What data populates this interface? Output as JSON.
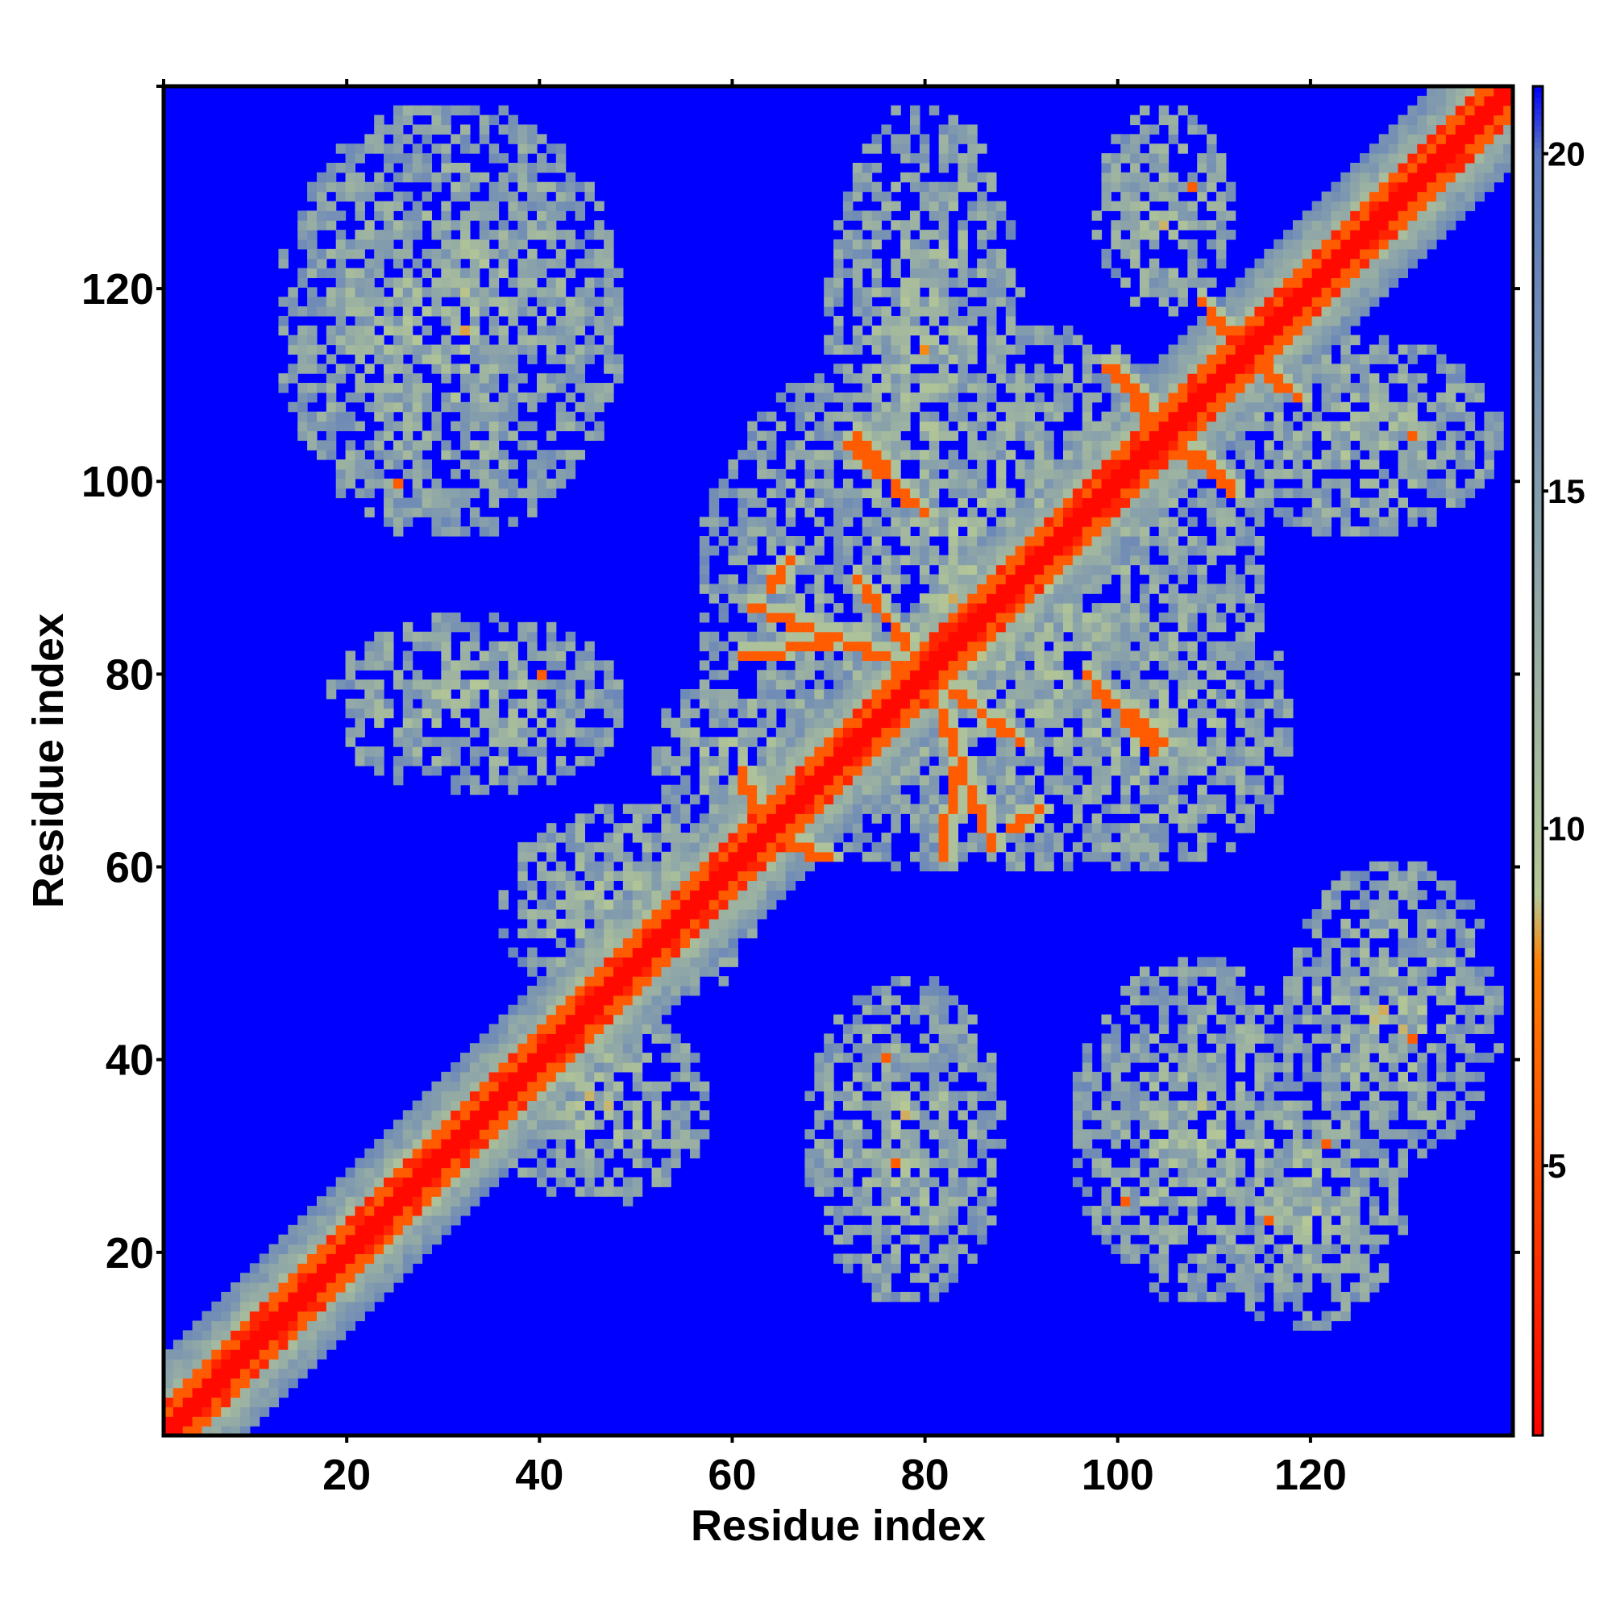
{
  "chart_data": {
    "type": "heatmap",
    "title": "",
    "xlabel": "Residue index",
    "ylabel": "Residue index",
    "xlim": [
      1,
      141
    ],
    "ylim": [
      1,
      141
    ],
    "x_ticks": [
      20,
      40,
      60,
      80,
      100,
      120
    ],
    "y_ticks": [
      20,
      40,
      60,
      80,
      100,
      120
    ],
    "n_residues": 141,
    "colorbar": {
      "range": [
        1,
        21
      ],
      "ticks": [
        5,
        10,
        15,
        20
      ],
      "colors": [
        "#ff0000",
        "#ff8000",
        "#b5c896",
        "#5a78c0",
        "#0000ff"
      ],
      "break_values": [
        1,
        8,
        9,
        20,
        21
      ]
    },
    "background_value": 21,
    "diagonal": {
      "core_value": 1.5,
      "near_value": 6,
      "halo_value": 12
    },
    "secondary_structure_contacts": [
      {
        "start": [
          80,
          80
        ],
        "end": [
          62,
          87
        ],
        "value": 6
      },
      {
        "start": [
          80,
          80
        ],
        "end": [
          90,
          73
        ],
        "value": 6
      },
      {
        "start": [
          83,
          70
        ],
        "end": [
          82,
          61
        ],
        "value": 6
      },
      {
        "start": [
          63,
          63
        ],
        "end": [
          70,
          61
        ],
        "value": 6
      },
      {
        "start": [
          63,
          63
        ],
        "end": [
          61,
          69
        ],
        "value": 6
      },
      {
        "start": [
          105,
          105
        ],
        "end": [
          100,
          112
        ],
        "value": 6
      },
      {
        "start": [
          105,
          105
        ],
        "end": [
          112,
          99
        ],
        "value": 6
      },
      {
        "start": [
          113,
          113
        ],
        "end": [
          110,
          118
        ],
        "value": 6
      },
      {
        "start": [
          113,
          113
        ],
        "end": [
          119,
          109
        ],
        "value": 6
      },
      {
        "start": [
          73,
          105
        ],
        "end": [
          78,
          98
        ],
        "value": 6
      },
      {
        "start": [
          97,
          80
        ],
        "end": [
          104,
          72
        ],
        "value": 6
      },
      {
        "start": [
          64,
          89
        ],
        "end": [
          66,
          92
        ],
        "value": 6
      },
      {
        "start": [
          28,
          25
        ],
        "end": [
          25,
          28
        ],
        "value": 6
      }
    ],
    "contact_regions": [
      {
        "x": [
          13,
          48
        ],
        "y": [
          95,
          139
        ],
        "value": 12
      },
      {
        "x": [
          18,
          48
        ],
        "y": [
          68,
          86
        ],
        "value": 12
      },
      {
        "x": [
          36,
          62
        ],
        "y": [
          45,
          66
        ],
        "value": 12
      },
      {
        "x": [
          52,
          70
        ],
        "y": [
          62,
          80
        ],
        "value": 12
      },
      {
        "x": [
          57,
          115
        ],
        "y": [
          60,
          116
        ],
        "value": 12
      },
      {
        "x": [
          70,
          90
        ],
        "y": [
          88,
          139
        ],
        "value": 12
      },
      {
        "x": [
          98,
          112
        ],
        "y": [
          118,
          139
        ],
        "value": 12
      },
      {
        "x": [
          110,
          140
        ],
        "y": [
          95,
          115
        ],
        "value": 12
      },
      {
        "x": [
          68,
          88
        ],
        "y": [
          15,
          48
        ],
        "value": 12
      },
      {
        "x": [
          96,
          120
        ],
        "y": [
          15,
          50
        ],
        "value": 12
      },
      {
        "x": [
          108,
          130
        ],
        "y": [
          12,
          40
        ],
        "value": 12
      },
      {
        "x": [
          118,
          140
        ],
        "y": [
          30,
          60
        ],
        "value": 12
      },
      {
        "x": [
          90,
          118
        ],
        "y": [
          60,
          90
        ],
        "value": 12
      },
      {
        "x": [
          35,
          57
        ],
        "y": [
          25,
          45
        ],
        "value": 12
      }
    ],
    "hot_spots": [
      {
        "x": 25,
        "y": 100,
        "value": 6
      },
      {
        "x": 40,
        "y": 80,
        "value": 6
      },
      {
        "x": 101,
        "y": 25,
        "value": 6
      },
      {
        "x": 116,
        "y": 23,
        "value": 6
      },
      {
        "x": 122,
        "y": 31,
        "value": 6
      },
      {
        "x": 131,
        "y": 42,
        "value": 6
      },
      {
        "x": 76,
        "y": 40,
        "value": 6
      },
      {
        "x": 77,
        "y": 29,
        "value": 6
      },
      {
        "x": 108,
        "y": 131,
        "value": 6
      },
      {
        "x": 131,
        "y": 105,
        "value": 6
      }
    ]
  }
}
